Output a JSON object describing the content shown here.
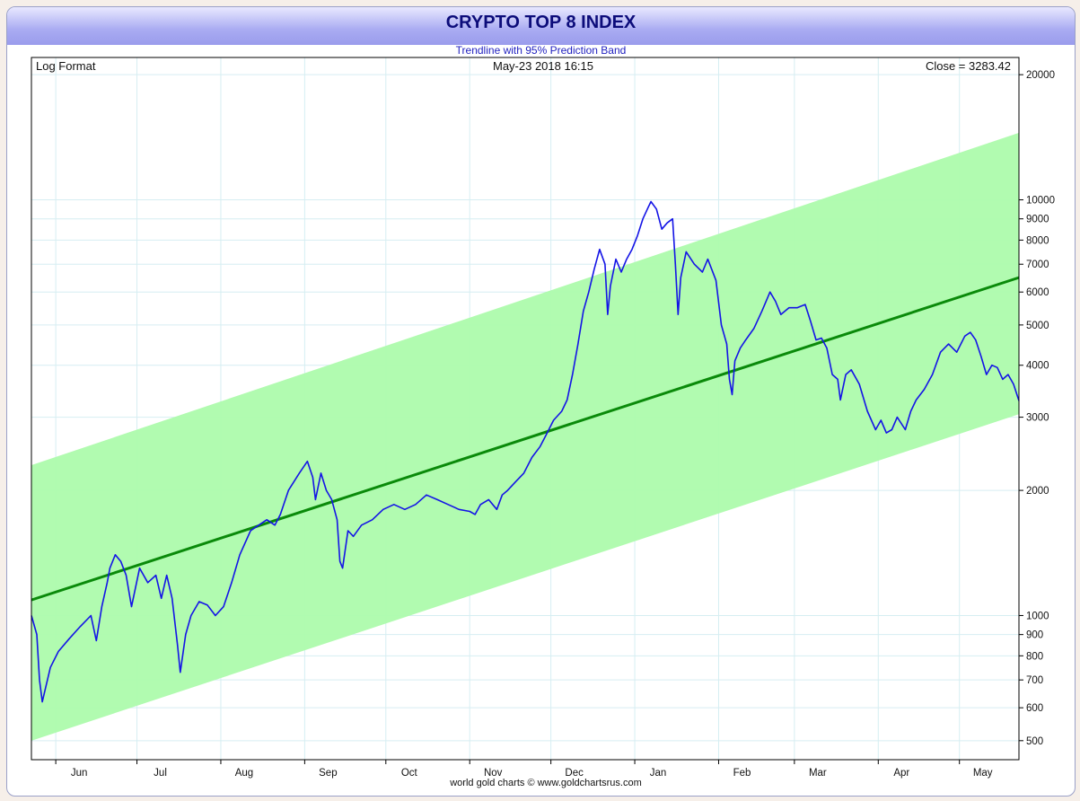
{
  "header": {
    "title": "CRYPTO TOP 8 INDEX",
    "subtitle": "Trendline with 95% Prediction Band"
  },
  "info": {
    "format_label": "Log Format",
    "datetime": "May-23  2018 16:15",
    "close_label": "Close = 3283.42"
  },
  "footer": {
    "credit": "world gold charts © www.goldchartsrus.com"
  },
  "colors": {
    "band": "#adfbac",
    "trend": "#0a8a0a",
    "series": "#1414e6",
    "grid": "#d6eef2",
    "axis": "#000000"
  },
  "chart_data": {
    "type": "line",
    "title": "CRYPTO TOP 8 INDEX",
    "subtitle": "Trendline with 95% Prediction Band",
    "yscale": "log",
    "ylim": [
      450,
      22000
    ],
    "xlim": [
      "2017-05-23",
      "2018-05-23"
    ],
    "x_ticks": [
      {
        "label": "Jun",
        "date": "2017-06-01"
      },
      {
        "label": "Jul",
        "date": "2017-07-01"
      },
      {
        "label": "Aug",
        "date": "2017-08-01"
      },
      {
        "label": "Sep",
        "date": "2017-09-01"
      },
      {
        "label": "Oct",
        "date": "2017-10-01"
      },
      {
        "label": "Nov",
        "date": "2017-11-01"
      },
      {
        "label": "Dec",
        "date": "2017-12-01"
      },
      {
        "label": "Jan",
        "date": "2018-01-01"
      },
      {
        "label": "Feb",
        "date": "2018-02-01"
      },
      {
        "label": "Mar",
        "date": "2018-03-01"
      },
      {
        "label": "Apr",
        "date": "2018-04-01"
      },
      {
        "label": "May",
        "date": "2018-05-01"
      }
    ],
    "y_ticks": [
      {
        "label": "20000",
        "value": 20000
      },
      {
        "label": "10000",
        "value": 10000
      },
      {
        "label": "9000",
        "value": 9000
      },
      {
        "label": "8000",
        "value": 8000
      },
      {
        "label": "7000",
        "value": 7000
      },
      {
        "label": "6000",
        "value": 6000
      },
      {
        "label": "5000",
        "value": 5000
      },
      {
        "label": "4000",
        "value": 4000
      },
      {
        "label": "3000",
        "value": 3000
      },
      {
        "label": "2000",
        "value": 2000
      },
      {
        "label": "1000",
        "value": 1000
      },
      {
        "label": "900",
        "value": 900
      },
      {
        "label": "800",
        "value": 800
      },
      {
        "label": "700",
        "value": 700
      },
      {
        "label": "600",
        "value": 600
      },
      {
        "label": "500",
        "value": 500
      }
    ],
    "trendline": {
      "start": {
        "date": "2017-05-23",
        "value": 1090
      },
      "end": {
        "date": "2018-05-23",
        "value": 6500
      }
    },
    "band_upper": {
      "start": {
        "date": "2017-05-23",
        "value": 2300
      },
      "end": {
        "date": "2018-05-23",
        "value": 14500
      }
    },
    "band_lower": {
      "start": {
        "date": "2017-05-23",
        "value": 500
      },
      "end": {
        "date": "2018-05-23",
        "value": 3050
      }
    },
    "close": 3283.42,
    "series": [
      {
        "points": [
          [
            "2017-05-23",
            1000
          ],
          [
            "2017-05-25",
            900
          ],
          [
            "2017-05-26",
            700
          ],
          [
            "2017-05-27",
            620
          ],
          [
            "2017-05-30",
            750
          ],
          [
            "2017-06-02",
            820
          ],
          [
            "2017-06-06",
            880
          ],
          [
            "2017-06-10",
            940
          ],
          [
            "2017-06-14",
            1000
          ],
          [
            "2017-06-16",
            870
          ],
          [
            "2017-06-18",
            1050
          ],
          [
            "2017-06-20",
            1200
          ],
          [
            "2017-06-21",
            1300
          ],
          [
            "2017-06-23",
            1400
          ],
          [
            "2017-06-25",
            1350
          ],
          [
            "2017-06-27",
            1250
          ],
          [
            "2017-06-29",
            1050
          ],
          [
            "2017-07-02",
            1300
          ],
          [
            "2017-07-05",
            1200
          ],
          [
            "2017-07-08",
            1250
          ],
          [
            "2017-07-10",
            1100
          ],
          [
            "2017-07-12",
            1250
          ],
          [
            "2017-07-14",
            1100
          ],
          [
            "2017-07-16",
            850
          ],
          [
            "2017-07-17",
            730
          ],
          [
            "2017-07-19",
            900
          ],
          [
            "2017-07-21",
            1000
          ],
          [
            "2017-07-24",
            1080
          ],
          [
            "2017-07-27",
            1060
          ],
          [
            "2017-07-30",
            1000
          ],
          [
            "2017-08-02",
            1050
          ],
          [
            "2017-08-05",
            1200
          ],
          [
            "2017-08-08",
            1400
          ],
          [
            "2017-08-12",
            1600
          ],
          [
            "2017-08-15",
            1650
          ],
          [
            "2017-08-18",
            1700
          ],
          [
            "2017-08-21",
            1650
          ],
          [
            "2017-08-23",
            1750
          ],
          [
            "2017-08-26",
            2000
          ],
          [
            "2017-08-30",
            2200
          ],
          [
            "2017-09-02",
            2350
          ],
          [
            "2017-09-04",
            2150
          ],
          [
            "2017-09-05",
            1900
          ],
          [
            "2017-09-07",
            2200
          ],
          [
            "2017-09-09",
            2000
          ],
          [
            "2017-09-11",
            1900
          ],
          [
            "2017-09-13",
            1700
          ],
          [
            "2017-09-14",
            1350
          ],
          [
            "2017-09-15",
            1300
          ],
          [
            "2017-09-17",
            1600
          ],
          [
            "2017-09-19",
            1550
          ],
          [
            "2017-09-22",
            1650
          ],
          [
            "2017-09-26",
            1700
          ],
          [
            "2017-09-30",
            1800
          ],
          [
            "2017-10-04",
            1850
          ],
          [
            "2017-10-08",
            1800
          ],
          [
            "2017-10-12",
            1850
          ],
          [
            "2017-10-16",
            1950
          ],
          [
            "2017-10-20",
            1900
          ],
          [
            "2017-10-24",
            1850
          ],
          [
            "2017-10-28",
            1800
          ],
          [
            "2017-11-01",
            1780
          ],
          [
            "2017-11-03",
            1750
          ],
          [
            "2017-11-05",
            1850
          ],
          [
            "2017-11-08",
            1900
          ],
          [
            "2017-11-11",
            1800
          ],
          [
            "2017-11-13",
            1950
          ],
          [
            "2017-11-15",
            2000
          ],
          [
            "2017-11-18",
            2100
          ],
          [
            "2017-11-21",
            2200
          ],
          [
            "2017-11-24",
            2400
          ],
          [
            "2017-11-27",
            2550
          ],
          [
            "2017-11-29",
            2700
          ],
          [
            "2017-12-02",
            2950
          ],
          [
            "2017-12-05",
            3100
          ],
          [
            "2017-12-07",
            3300
          ],
          [
            "2017-12-09",
            3800
          ],
          [
            "2017-12-11",
            4500
          ],
          [
            "2017-12-13",
            5400
          ],
          [
            "2017-12-15",
            6000
          ],
          [
            "2017-12-17",
            6800
          ],
          [
            "2017-12-19",
            7600
          ],
          [
            "2017-12-21",
            7000
          ],
          [
            "2017-12-22",
            5300
          ],
          [
            "2017-12-23",
            6200
          ],
          [
            "2017-12-25",
            7200
          ],
          [
            "2017-12-27",
            6700
          ],
          [
            "2017-12-29",
            7200
          ],
          [
            "2017-12-31",
            7600
          ],
          [
            "2018-01-02",
            8200
          ],
          [
            "2018-01-04",
            9000
          ],
          [
            "2018-01-06",
            9600
          ],
          [
            "2018-01-07",
            9900
          ],
          [
            "2018-01-09",
            9500
          ],
          [
            "2018-01-11",
            8500
          ],
          [
            "2018-01-13",
            8800
          ],
          [
            "2018-01-15",
            9000
          ],
          [
            "2018-01-16",
            7000
          ],
          [
            "2018-01-17",
            5300
          ],
          [
            "2018-01-18",
            6500
          ],
          [
            "2018-01-20",
            7500
          ],
          [
            "2018-01-23",
            7000
          ],
          [
            "2018-01-26",
            6700
          ],
          [
            "2018-01-28",
            7200
          ],
          [
            "2018-01-31",
            6400
          ],
          [
            "2018-02-02",
            5000
          ],
          [
            "2018-02-04",
            4500
          ],
          [
            "2018-02-05",
            3700
          ],
          [
            "2018-02-06",
            3400
          ],
          [
            "2018-02-07",
            4100
          ],
          [
            "2018-02-09",
            4400
          ],
          [
            "2018-02-11",
            4600
          ],
          [
            "2018-02-14",
            4900
          ],
          [
            "2018-02-17",
            5400
          ],
          [
            "2018-02-20",
            6000
          ],
          [
            "2018-02-22",
            5700
          ],
          [
            "2018-02-24",
            5300
          ],
          [
            "2018-02-27",
            5500
          ],
          [
            "2018-03-02",
            5500
          ],
          [
            "2018-03-05",
            5600
          ],
          [
            "2018-03-07",
            5100
          ],
          [
            "2018-03-09",
            4600
          ],
          [
            "2018-03-11",
            4650
          ],
          [
            "2018-03-13",
            4400
          ],
          [
            "2018-03-15",
            3800
          ],
          [
            "2018-03-17",
            3700
          ],
          [
            "2018-03-18",
            3300
          ],
          [
            "2018-03-20",
            3800
          ],
          [
            "2018-03-22",
            3900
          ],
          [
            "2018-03-25",
            3600
          ],
          [
            "2018-03-28",
            3100
          ],
          [
            "2018-03-31",
            2800
          ],
          [
            "2018-04-02",
            2950
          ],
          [
            "2018-04-04",
            2750
          ],
          [
            "2018-04-06",
            2800
          ],
          [
            "2018-04-08",
            3000
          ],
          [
            "2018-04-11",
            2800
          ],
          [
            "2018-04-13",
            3100
          ],
          [
            "2018-04-15",
            3300
          ],
          [
            "2018-04-18",
            3500
          ],
          [
            "2018-04-21",
            3800
          ],
          [
            "2018-04-24",
            4300
          ],
          [
            "2018-04-27",
            4500
          ],
          [
            "2018-04-30",
            4300
          ],
          [
            "2018-05-03",
            4700
          ],
          [
            "2018-05-05",
            4800
          ],
          [
            "2018-05-07",
            4600
          ],
          [
            "2018-05-09",
            4200
          ],
          [
            "2018-05-11",
            3800
          ],
          [
            "2018-05-13",
            4000
          ],
          [
            "2018-05-15",
            3950
          ],
          [
            "2018-05-17",
            3700
          ],
          [
            "2018-05-19",
            3800
          ],
          [
            "2018-05-21",
            3600
          ],
          [
            "2018-05-23",
            3283.42
          ]
        ]
      }
    ]
  }
}
